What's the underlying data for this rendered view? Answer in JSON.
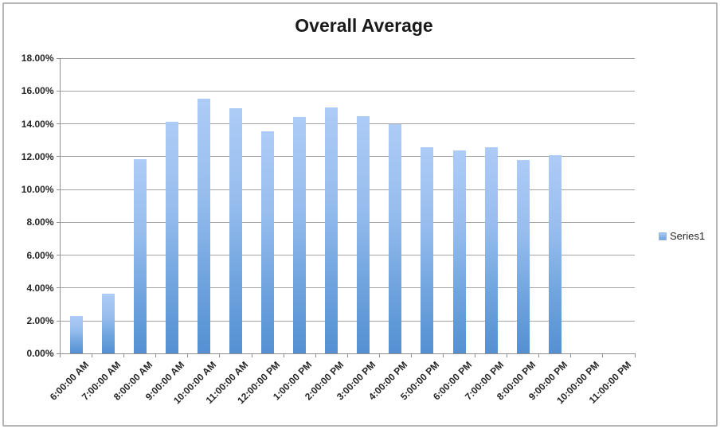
{
  "chart_data": {
    "type": "bar",
    "title": "Overall Average",
    "categories": [
      "6:00:00 AM",
      "7:00:00 AM",
      "8:00:00 AM",
      "9:00:00 AM",
      "10:00:00 AM",
      "11:00:00 AM",
      "12:00:00 PM",
      "1:00:00 PM",
      "2:00:00 PM",
      "3:00:00 PM",
      "4:00:00 PM",
      "5:00:00 PM",
      "6:00:00 PM",
      "7:00:00 PM",
      "8:00:00 PM",
      "9:00:00 PM",
      "10:00:00 PM",
      "11:00:00 PM"
    ],
    "series": [
      {
        "name": "Series1",
        "values": [
          2.3,
          3.65,
          11.85,
          14.1,
          15.55,
          14.95,
          13.55,
          14.4,
          15.0,
          14.45,
          14.0,
          12.55,
          12.4,
          12.55,
          11.8,
          12.1,
          0,
          0
        ]
      }
    ],
    "value_unit": "%",
    "xlabel": "",
    "ylabel": "",
    "ylim": [
      0,
      18
    ],
    "y_tick_step": 2,
    "y_ticks": [
      {
        "value": 18,
        "label": "18.00%"
      },
      {
        "value": 16,
        "label": "16.00%"
      },
      {
        "value": 14,
        "label": "14.00%"
      },
      {
        "value": 12,
        "label": "12.00%"
      },
      {
        "value": 10,
        "label": "10.00%"
      },
      {
        "value": 8,
        "label": "8.00%"
      },
      {
        "value": 6,
        "label": "6.00%"
      },
      {
        "value": 4,
        "label": "4.00%"
      },
      {
        "value": 2,
        "label": "2.00%"
      },
      {
        "value": 0,
        "label": "0.00%"
      }
    ],
    "grid": true,
    "legend_position": "right",
    "legend_entries": [
      "Series1"
    ],
    "colors": {
      "bar_gradient_top": "#adccf6",
      "bar_gradient_bottom": "#5590d2",
      "gridline": "#a3a3a3",
      "axis": "#8f8f8f",
      "label_text": "#262626",
      "title_text": "#1a1a1a",
      "frame_border": "#b5b5b5",
      "background": "#ffffff"
    }
  }
}
